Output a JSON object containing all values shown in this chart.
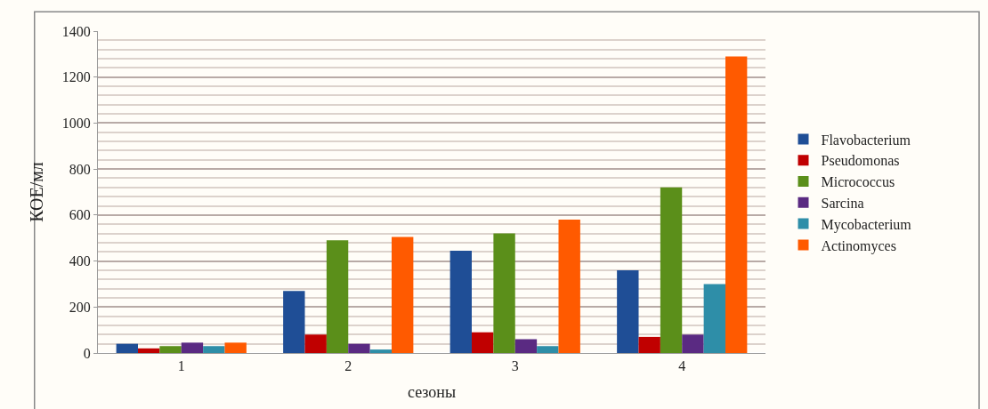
{
  "chart_data": {
    "type": "bar",
    "xlabel": "сезоны",
    "ylabel": "КОЕ/мл",
    "categories": [
      "1",
      "2",
      "3",
      "4"
    ],
    "series": [
      {
        "name": "Flavobacterium",
        "color": "#1f4e96",
        "values": [
          40,
          270,
          445,
          360
        ]
      },
      {
        "name": "Pseudomonas",
        "color": "#c00000",
        "values": [
          20,
          80,
          90,
          70
        ]
      },
      {
        "name": "Micrococcus",
        "color": "#5b8f1a",
        "values": [
          30,
          490,
          520,
          720
        ]
      },
      {
        "name": "Sarcina",
        "color": "#5a2a82",
        "values": [
          45,
          40,
          60,
          80
        ]
      },
      {
        "name": "Mycobacterium",
        "color": "#2e8ea8",
        "values": [
          30,
          15,
          30,
          300
        ]
      },
      {
        "name": "Actinomyces",
        "color": "#ff5a00",
        "values": [
          45,
          505,
          580,
          1290
        ]
      }
    ],
    "ylim": [
      0,
      1400
    ],
    "yticks": [
      0,
      200,
      400,
      600,
      800,
      1000,
      1200,
      1400
    ],
    "grid": "y",
    "legend": "right"
  }
}
